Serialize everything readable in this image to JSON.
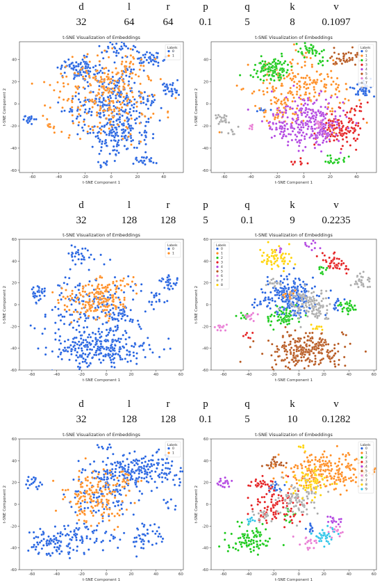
{
  "colors": {
    "blue": "#1f5fe0",
    "orange": "#ff8a1c",
    "green": "#14c814",
    "red": "#e41a1c",
    "purple": "#b040e0",
    "brown": "#b5541a",
    "pink": "#e879d3",
    "gray": "#a8a8a8",
    "yellow": "#ffd200",
    "cyan": "#27c3e8"
  },
  "param_names": [
    "d",
    "l",
    "r",
    "p",
    "q",
    "k",
    "v"
  ],
  "rows": [
    {
      "values": [
        "32",
        "64",
        "64",
        "0.1",
        "5",
        "8",
        "0.1097"
      ]
    },
    {
      "values": [
        "32",
        "128",
        "128",
        "5",
        "0.1",
        "9",
        "0.2235"
      ]
    },
    {
      "values": [
        "32",
        "128",
        "128",
        "0.1",
        "5",
        "10",
        "0.1282"
      ]
    }
  ],
  "chart_data": [
    {
      "type": "scatter",
      "title": "t-SNE Visualization of Embeddings",
      "xlabel": "t-SNE Component 1",
      "ylabel": "t-SNE Component 2",
      "xlim": [
        -70,
        55
      ],
      "ylim": [
        -62,
        56
      ],
      "xticks": [
        -60,
        -40,
        -20,
        0,
        20,
        40
      ],
      "yticks": [
        -60,
        -40,
        -20,
        0,
        20,
        40
      ],
      "legend": {
        "title": "Labels",
        "position": "top-right",
        "labels": [
          "0",
          "1"
        ]
      },
      "series": [
        {
          "name": "0",
          "color": "#1f5fe0",
          "clusters": [
            [
              -25,
              32,
              7,
              5,
              90
            ],
            [
              -2,
              10,
              14,
              10,
              150
            ],
            [
              5,
              -20,
              13,
              12,
              220
            ],
            [
              5,
              48,
              7,
              4,
              35
            ],
            [
              32,
              42,
              6,
              4,
              40
            ],
            [
              44,
              13,
              4,
              4,
              30
            ],
            [
              -62,
              -14,
              3,
              2,
              20
            ],
            [
              24,
              -52,
              5,
              3,
              25
            ],
            [
              -5,
              -54,
              3,
              2,
              10
            ],
            [
              -30,
              -5,
              4,
              3,
              15
            ],
            [
              28,
              5,
              5,
              4,
              15
            ],
            [
              12,
              30,
              3,
              3,
              10
            ]
          ]
        },
        {
          "name": "1",
          "color": "#ff8a1c",
          "clusters": [
            [
              -5,
              5,
              20,
              18,
              230
            ],
            [
              -45,
              -22,
              4,
              3,
              10
            ],
            [
              15,
              35,
              6,
              5,
              20
            ],
            [
              0,
              20,
              8,
              6,
              30
            ]
          ]
        }
      ]
    },
    {
      "type": "scatter",
      "title": "t-SNE Visualization of Embeddings",
      "xlabel": "t-SNE Component 1",
      "ylabel": "t-SNE Component 2",
      "xlim": [
        -70,
        55
      ],
      "ylim": [
        -62,
        56
      ],
      "xticks": [
        -60,
        -40,
        -20,
        0,
        20,
        40
      ],
      "yticks": [
        -60,
        -40,
        -20,
        0,
        20,
        40
      ],
      "legend": {
        "title": "Labels",
        "position": "top-right",
        "labels": [
          "0",
          "1",
          "2",
          "3",
          "4",
          "5",
          "6",
          "7"
        ]
      },
      "series": [
        {
          "name": "0",
          "color": "#1f5fe0",
          "clusters": [
            [
              44,
              13,
              4,
              4,
              40
            ],
            [
              -30,
              -5,
              3,
              2,
              8
            ]
          ]
        },
        {
          "name": "1",
          "color": "#ff8a1c",
          "clusters": [
            [
              -5,
              12,
              18,
              14,
              220
            ],
            [
              -20,
              -5,
              6,
              5,
              30
            ]
          ]
        },
        {
          "name": "2",
          "color": "#14c814",
          "clusters": [
            [
              -25,
              32,
              7,
              5,
              110
            ],
            [
              5,
              48,
              5,
              3,
              35
            ],
            [
              24,
              -52,
              5,
              3,
              20
            ],
            [
              15,
              38,
              3,
              3,
              8
            ]
          ]
        },
        {
          "name": "3",
          "color": "#e41a1c",
          "clusters": [
            [
              27,
              -22,
              9,
              8,
              110
            ],
            [
              -5,
              -54,
              3,
              2,
              10
            ],
            [
              40,
              -5,
              4,
              4,
              15
            ]
          ]
        },
        {
          "name": "4",
          "color": "#b040e0",
          "clusters": [
            [
              3,
              -18,
              13,
              11,
              260
            ],
            [
              -20,
              -20,
              4,
              3,
              20
            ],
            [
              15,
              -30,
              4,
              3,
              15
            ]
          ]
        },
        {
          "name": "5",
          "color": "#b5541a",
          "clusters": [
            [
              32,
              42,
              6,
              4,
              45
            ]
          ]
        },
        {
          "name": "6",
          "color": "#e879d3",
          "clusters": [
            [
              12,
              -20,
              2,
              2,
              10
            ],
            [
              -40,
              -20,
              2,
              2,
              6
            ]
          ]
        },
        {
          "name": "7",
          "color": "#a8a8a8",
          "clusters": [
            [
              -62,
              -14,
              3,
              2,
              25
            ],
            [
              -55,
              -25,
              3,
              2,
              8
            ]
          ]
        }
      ]
    },
    {
      "type": "scatter",
      "title": "t-SNE Visualization of Embeddings",
      "xlabel": "t-SNE Component 1",
      "ylabel": "t-SNE Component 2",
      "xlim": [
        -70,
        62
      ],
      "ylim": [
        -60,
        60
      ],
      "xticks": [
        -60,
        -40,
        -20,
        0,
        20,
        40,
        60
      ],
      "yticks": [
        -60,
        -40,
        -20,
        0,
        20,
        40,
        60
      ],
      "legend": {
        "title": "Labels",
        "position": "top-right",
        "labels": [
          "0",
          "1"
        ]
      },
      "series": [
        {
          "name": "0",
          "color": "#1f5fe0",
          "clusters": [
            [
              -5,
              -40,
              18,
              8,
              240
            ],
            [
              -10,
              -5,
              20,
              18,
              200
            ],
            [
              -20,
              45,
              5,
              4,
              30
            ],
            [
              50,
              20,
              4,
              4,
              30
            ],
            [
              -55,
              10,
              4,
              4,
              30
            ],
            [
              40,
              5,
              4,
              4,
              15
            ],
            [
              10,
              -10,
              6,
              5,
              30
            ]
          ]
        },
        {
          "name": "1",
          "color": "#ff8a1c",
          "clusters": [
            [
              -5,
              10,
              10,
              7,
              90
            ],
            [
              -3,
              -2,
              10,
              6,
              60
            ],
            [
              -30,
              5,
              8,
              6,
              20
            ],
            [
              10,
              20,
              5,
              4,
              15
            ]
          ]
        }
      ]
    },
    {
      "type": "scatter",
      "title": "t-SNE Visualization of Embeddings",
      "xlabel": "t-SNE Component 1",
      "ylabel": "t-SNE Component 2",
      "xlim": [
        -70,
        62
      ],
      "ylim": [
        -60,
        60
      ],
      "xticks": [
        -60,
        -40,
        -20,
        0,
        20,
        40,
        60
      ],
      "yticks": [
        -60,
        -40,
        -20,
        0,
        20,
        40,
        60
      ],
      "legend": {
        "title": "Labels",
        "position": "top-left",
        "labels": [
          "0",
          "1",
          "2",
          "3",
          "4",
          "5",
          "6",
          "7",
          "8"
        ]
      },
      "series": [
        {
          "name": "0",
          "color": "#1f5fe0",
          "clusters": [
            [
              -8,
              10,
              10,
              8,
              200
            ],
            [
              0,
              -5,
              6,
              4,
              30
            ],
            [
              -30,
              2,
              4,
              3,
              15
            ],
            [
              30,
              0,
              4,
              3,
              15
            ]
          ]
        },
        {
          "name": "1",
          "color": "#ff8a1c",
          "clusters": [
            [
              -8,
              10,
              3,
              2,
              10
            ]
          ]
        },
        {
          "name": "2",
          "color": "#14c814",
          "clusters": [
            [
              -12,
              -12,
              7,
              5,
              60
            ],
            [
              38,
              -2,
              4,
              3,
              30
            ],
            [
              20,
              30,
              3,
              3,
              10
            ],
            [
              -45,
              -10,
              3,
              2,
              10
            ]
          ]
        },
        {
          "name": "3",
          "color": "#e41a1c",
          "clusters": [
            [
              30,
              38,
              5,
              4,
              45
            ],
            [
              -40,
              -30,
              2,
              2,
              6
            ]
          ]
        },
        {
          "name": "4",
          "color": "#b040e0",
          "clusters": [
            [
              10,
              55,
              3,
              2,
              10
            ],
            [
              -15,
              50,
              2,
              2,
              6
            ]
          ]
        },
        {
          "name": "5",
          "color": "#b5541a",
          "clusters": [
            [
              5,
              -42,
              15,
              8,
              260
            ]
          ]
        },
        {
          "name": "6",
          "color": "#e879d3",
          "clusters": [
            [
              -62,
              -20,
              3,
              2,
              15
            ],
            [
              -38,
              -10,
              3,
              2,
              12
            ]
          ]
        },
        {
          "name": "7",
          "color": "#a8a8a8",
          "clusters": [
            [
              8,
              0,
              9,
              8,
              120
            ],
            [
              50,
              20,
              4,
              4,
              30
            ],
            [
              -20,
              20,
              4,
              3,
              15
            ]
          ]
        },
        {
          "name": "8",
          "color": "#ffd200",
          "clusters": [
            [
              -18,
              42,
              7,
              5,
              60
            ],
            [
              15,
              -20,
              3,
              2,
              10
            ]
          ]
        }
      ]
    },
    {
      "type": "scatter",
      "title": "t-SNE Visualization of Embeddings",
      "xlabel": "t-SNE Component 1",
      "ylabel": "t-SNE Component 2",
      "xlim": [
        -70,
        62
      ],
      "ylim": [
        -60,
        60
      ],
      "xticks": [
        -60,
        -40,
        -20,
        0,
        20,
        40,
        60
      ],
      "yticks": [
        -60,
        -40,
        -20,
        0,
        20,
        40,
        60
      ],
      "legend": {
        "title": "Labels",
        "position": "top-right",
        "labels": [
          "0",
          "1"
        ]
      },
      "series": [
        {
          "name": "0",
          "color": "#1f5fe0",
          "clusters": [
            [
              25,
              30,
              20,
              8,
              230
            ],
            [
              -45,
              -35,
              8,
              6,
              70
            ],
            [
              -20,
              -30,
              12,
              8,
              80
            ],
            [
              -60,
              20,
              3,
              3,
              20
            ],
            [
              -5,
              10,
              12,
              10,
              100
            ],
            [
              30,
              -30,
              8,
              6,
              50
            ],
            [
              0,
              52,
              3,
              2,
              8
            ],
            [
              50,
              0,
              3,
              3,
              8
            ]
          ]
        },
        {
          "name": "1",
          "color": "#ff8a1c",
          "clusters": [
            [
              -10,
              5,
              12,
              12,
              150
            ],
            [
              15,
              20,
              6,
              5,
              20
            ]
          ]
        }
      ]
    },
    {
      "type": "scatter",
      "title": "t-SNE Visualization of Embeddings",
      "xlabel": "t-SNE Component 1",
      "ylabel": "t-SNE Component 2",
      "xlim": [
        -70,
        62
      ],
      "ylim": [
        -60,
        60
      ],
      "xticks": [
        -60,
        -40,
        -20,
        0,
        20,
        40,
        60
      ],
      "yticks": [
        -60,
        -40,
        -20,
        0,
        20,
        40,
        60
      ],
      "legend": {
        "title": "Labels",
        "position": "top-right",
        "labels": [
          "0",
          "1",
          "2",
          "3",
          "4",
          "5",
          "6",
          "7",
          "8",
          "9"
        ]
      },
      "series": [
        {
          "name": "0",
          "color": "#1f5fe0",
          "clusters": [
            [
              -20,
              15,
              4,
              3,
              15
            ],
            [
              10,
              -20,
              3,
              3,
              10
            ]
          ]
        },
        {
          "name": "1",
          "color": "#ff8a1c",
          "clusters": [
            [
              25,
              30,
              20,
              8,
              240
            ]
          ]
        },
        {
          "name": "2",
          "color": "#14c814",
          "clusters": [
            [
              -40,
              -32,
              9,
              6,
              90
            ],
            [
              -10,
              -10,
              3,
              3,
              10
            ]
          ]
        },
        {
          "name": "3",
          "color": "#e41a1c",
          "clusters": [
            [
              -20,
              0,
              10,
              10,
              100
            ],
            [
              -30,
              20,
              4,
              3,
              20
            ]
          ]
        },
        {
          "name": "4",
          "color": "#b040e0",
          "clusters": [
            [
              -60,
              20,
              3,
              3,
              20
            ],
            [
              28,
              -15,
              3,
              3,
              15
            ]
          ]
        },
        {
          "name": "5",
          "color": "#b5541a",
          "clusters": [
            [
              -20,
              38,
              4,
              3,
              25
            ]
          ]
        },
        {
          "name": "6",
          "color": "#e879d3",
          "clusters": [
            [
              8,
              -35,
              4,
              3,
              20
            ],
            [
              30,
              -25,
              3,
              3,
              15
            ]
          ]
        },
        {
          "name": "7",
          "color": "#a8a8a8",
          "clusters": [
            [
              0,
              5,
              8,
              7,
              90
            ],
            [
              -30,
              -10,
              4,
              3,
              15
            ]
          ]
        },
        {
          "name": "8",
          "color": "#ffd200",
          "clusters": [
            [
              10,
              20,
              8,
              6,
              60
            ],
            [
              2,
              52,
              2,
              2,
              6
            ]
          ]
        },
        {
          "name": "9",
          "color": "#27c3e8",
          "clusters": [
            [
              20,
              -28,
              5,
              4,
              35
            ],
            [
              -40,
              -15,
              3,
              2,
              10
            ]
          ]
        }
      ]
    }
  ]
}
